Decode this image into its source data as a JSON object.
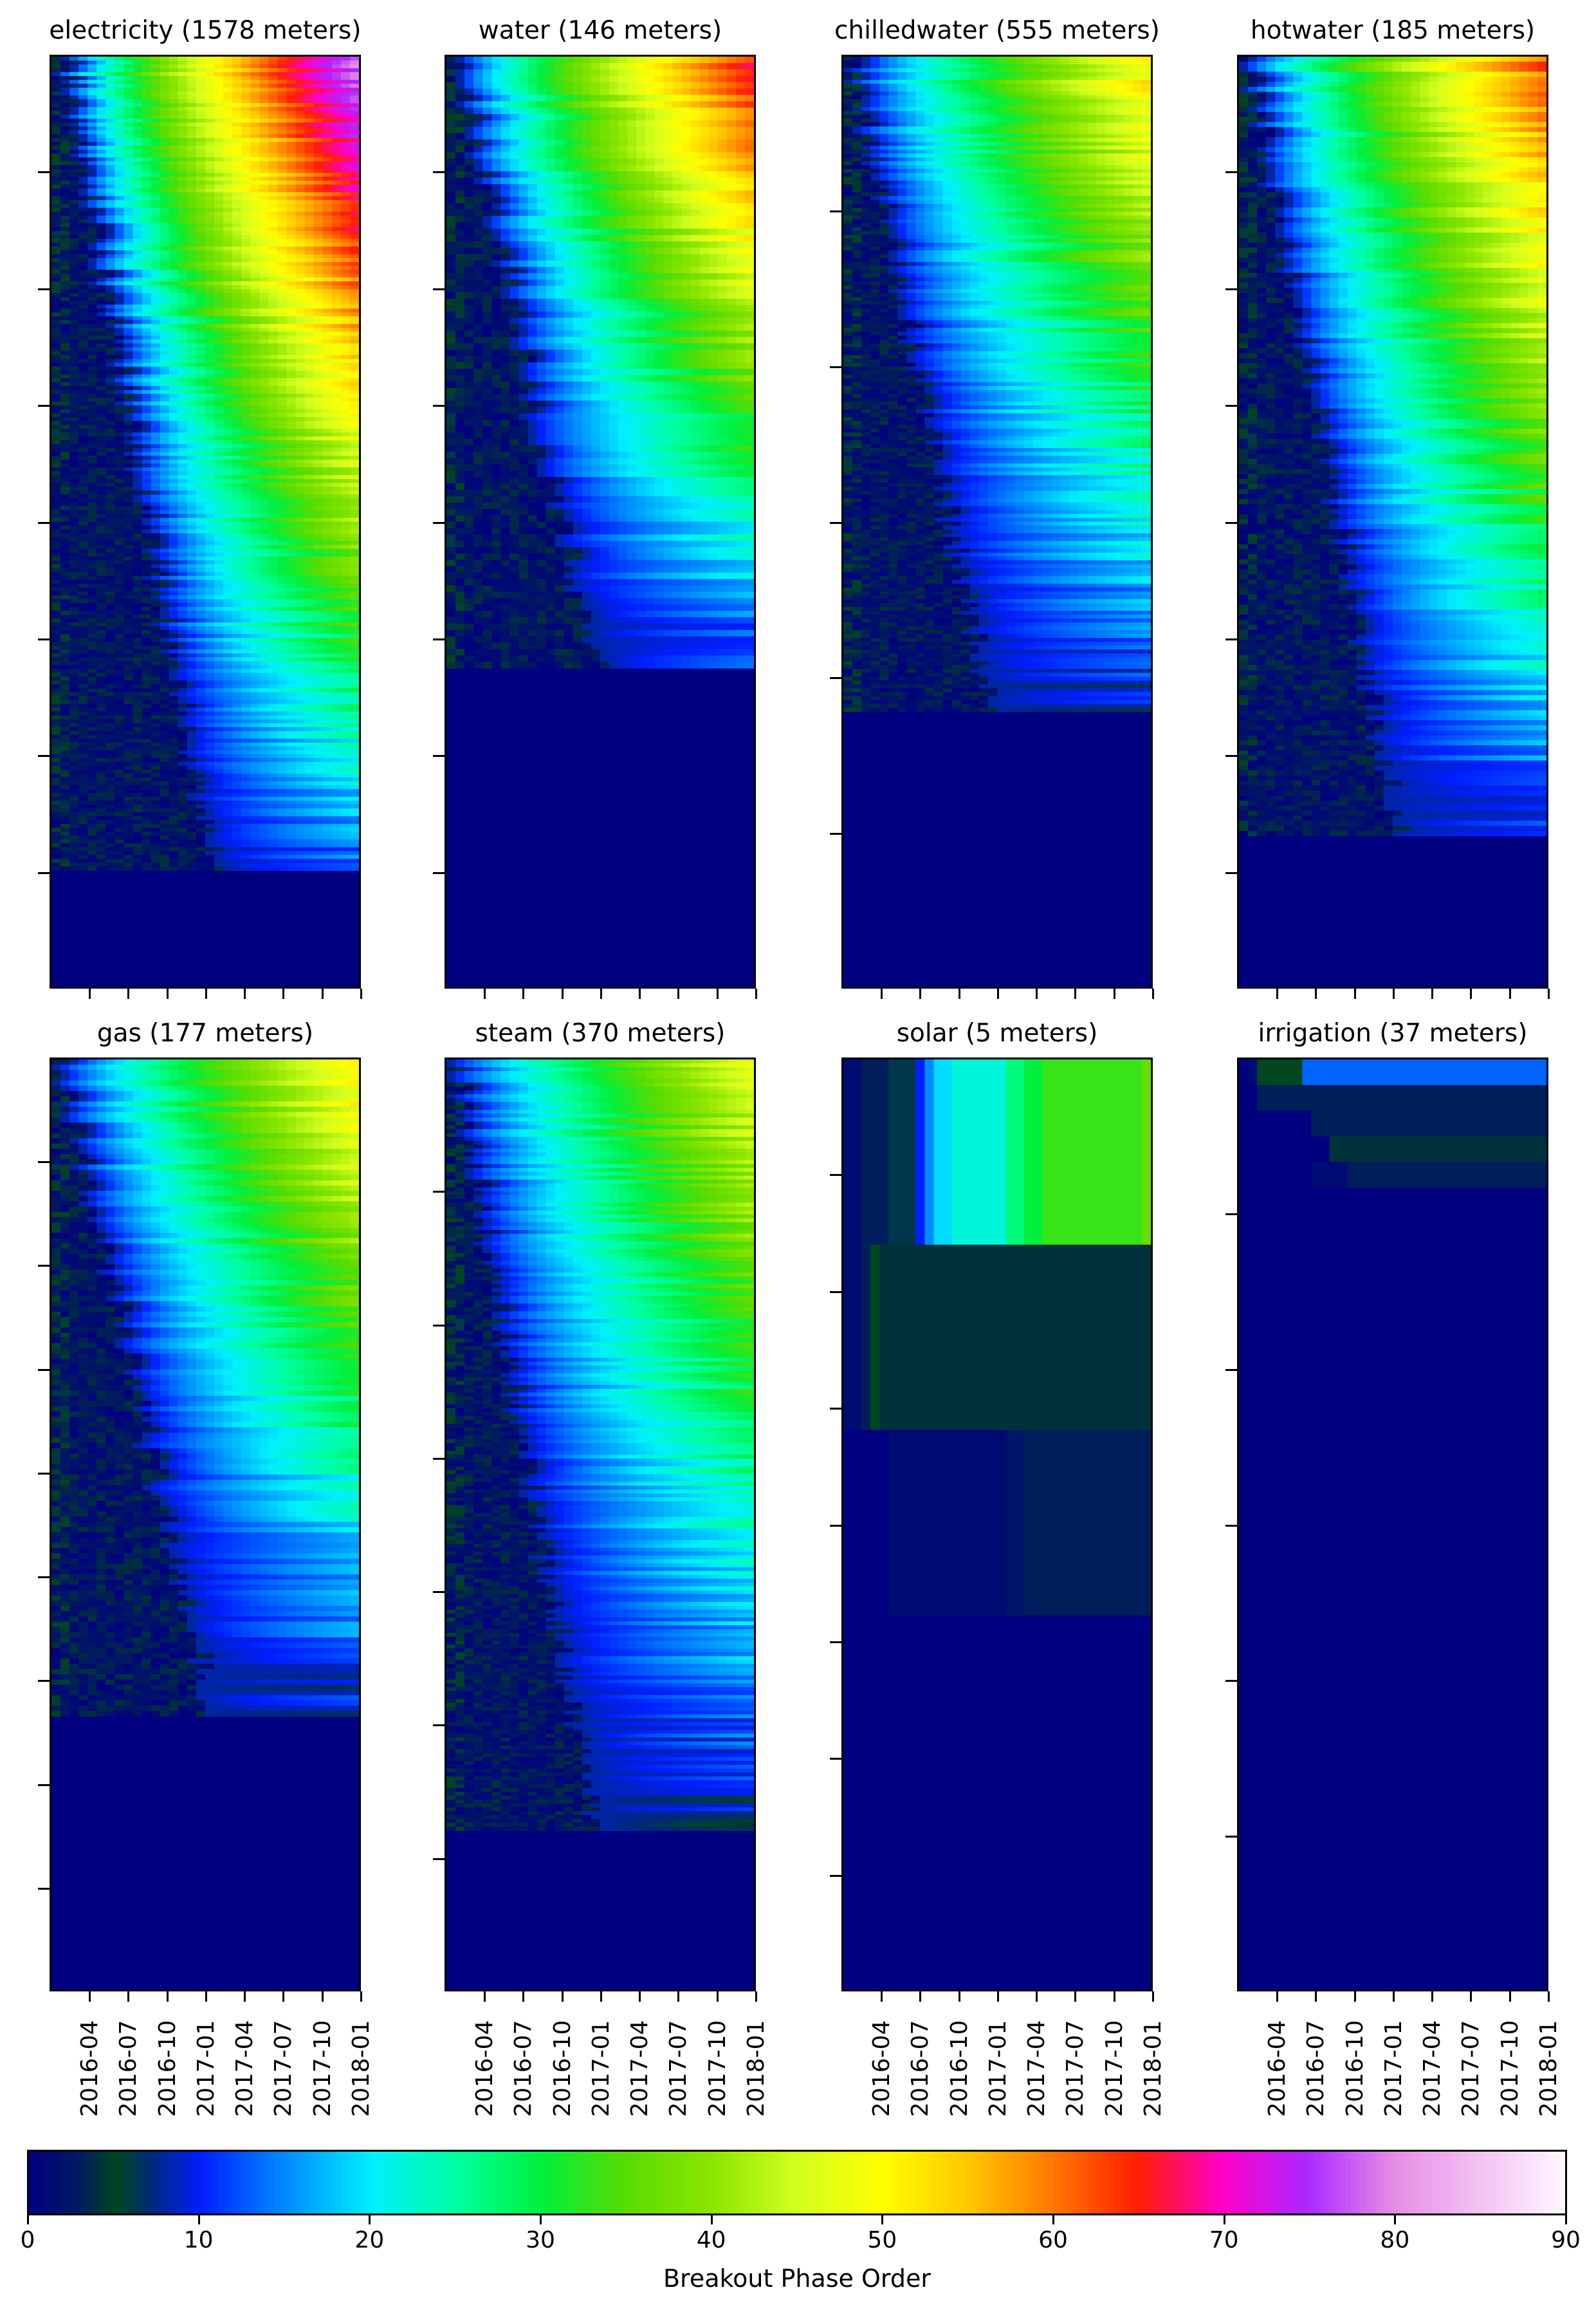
{
  "chart_data": {
    "type": "heatmap",
    "panels": [
      {
        "title": "electricity (1578 meters)",
        "meters": 1578,
        "ytick_count": 7,
        "active_fraction": 0.875,
        "start_shift": 0.55,
        "max_value": 80,
        "gradient_strength": 1.0
      },
      {
        "title": "water (146 meters)",
        "meters": 146,
        "ytick_count": 7,
        "active_fraction": 0.66,
        "start_shift": 0.5,
        "max_value": 70,
        "gradient_strength": 0.95
      },
      {
        "title": "chilledwater (555 meters)",
        "meters": 555,
        "ytick_count": 5,
        "active_fraction": 0.705,
        "start_shift": 0.5,
        "max_value": 62,
        "gradient_strength": 0.85
      },
      {
        "title": "hotwater (185 meters)",
        "meters": 185,
        "ytick_count": 7,
        "active_fraction": 0.84,
        "start_shift": 0.55,
        "max_value": 70,
        "gradient_strength": 0.9
      },
      {
        "title": "gas (177 meters)",
        "meters": 177,
        "ytick_count": 8,
        "active_fraction": 0.705,
        "start_shift": 0.55,
        "max_value": 62,
        "gradient_strength": 0.85
      },
      {
        "title": "steam (370 meters)",
        "meters": 370,
        "ytick_count": 6,
        "active_fraction": 0.83,
        "start_shift": 0.5,
        "max_value": 60,
        "gradient_strength": 0.8
      },
      {
        "title": "solar (5 meters)",
        "meters": 5,
        "ytick_count": 7,
        "rows": [
          [
            [
              0,
              1
            ],
            [
              2,
              3
            ],
            [
              5,
              6
            ],
            [
              8,
              10
            ],
            [
              9,
              15
            ],
            [
              10,
              19
            ],
            [
              12,
              22
            ],
            [
              18,
              27
            ],
            [
              20,
              30
            ],
            [
              22,
              33
            ],
            [
              33,
              36
            ]
          ],
          [
            [
              0,
              1
            ],
            [
              2,
              3
            ],
            [
              3,
              5
            ],
            [
              4,
              4
            ],
            [
              8,
              4
            ],
            [
              33,
              4
            ]
          ],
          [
            [
              0,
              0
            ],
            [
              2,
              0
            ],
            [
              4,
              0
            ],
            [
              5,
              1
            ],
            [
              6,
              1
            ],
            [
              8,
              1
            ],
            [
              12,
              1
            ],
            [
              18,
              2
            ],
            [
              20,
              3
            ],
            [
              33,
              3
            ]
          ]
        ],
        "row_fraction": 0.2
      },
      {
        "title": "irrigation (37 meters)",
        "meters": 37,
        "ytick_count": 5,
        "rows_special": true
      }
    ],
    "x_ticks": [
      "2016-04",
      "2016-07",
      "2016-10",
      "2017-01",
      "2017-04",
      "2017-07",
      "2017-10",
      "2018-01"
    ],
    "colorbar": {
      "label": "Breakout Phase Order",
      "ticks": [
        "0",
        "10",
        "20",
        "30",
        "40",
        "50",
        "60",
        "70",
        "80",
        "90"
      ],
      "range": [
        0,
        90
      ],
      "colormap": "gist_ncar"
    }
  }
}
